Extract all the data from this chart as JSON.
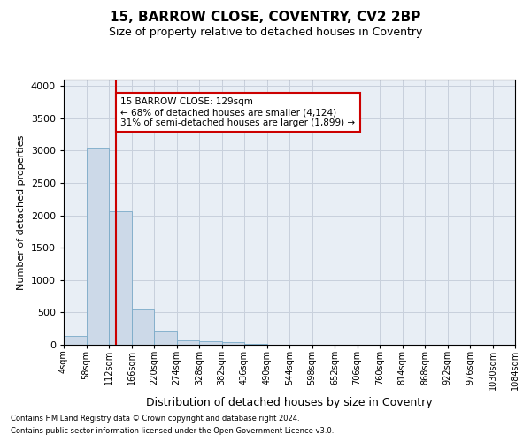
{
  "title1": "15, BARROW CLOSE, COVENTRY, CV2 2BP",
  "title2": "Size of property relative to detached houses in Coventry",
  "xlabel": "Distribution of detached houses by size in Coventry",
  "ylabel": "Number of detached properties",
  "footnote1": "Contains HM Land Registry data © Crown copyright and database right 2024.",
  "footnote2": "Contains public sector information licensed under the Open Government Licence v3.0.",
  "annotation_line1": "15 BARROW CLOSE: 129sqm",
  "annotation_line2": "← 68% of detached houses are smaller (4,124)",
  "annotation_line3": "31% of semi-detached houses are larger (1,899) →",
  "property_size": 129,
  "bar_color": "#ccd9e8",
  "bar_edge_color": "#7aaac8",
  "redline_color": "#cc0000",
  "annotation_box_color": "#cc0000",
  "grid_color": "#c8d0dc",
  "ax_bg_color": "#e8eef5",
  "bin_edges": [
    4,
    58,
    112,
    166,
    220,
    274,
    328,
    382,
    436,
    490,
    544,
    598,
    652,
    706,
    760,
    814,
    868,
    922,
    976,
    1030,
    1084
  ],
  "bar_heights": [
    130,
    3050,
    2070,
    550,
    200,
    75,
    50,
    40,
    10,
    5,
    3,
    2,
    1,
    0,
    0,
    0,
    0,
    0,
    0,
    0
  ],
  "ylim": [
    0,
    4100
  ],
  "yticks": [
    0,
    500,
    1000,
    1500,
    2000,
    2500,
    3000,
    3500,
    4000
  ],
  "background_color": "#ffffff"
}
